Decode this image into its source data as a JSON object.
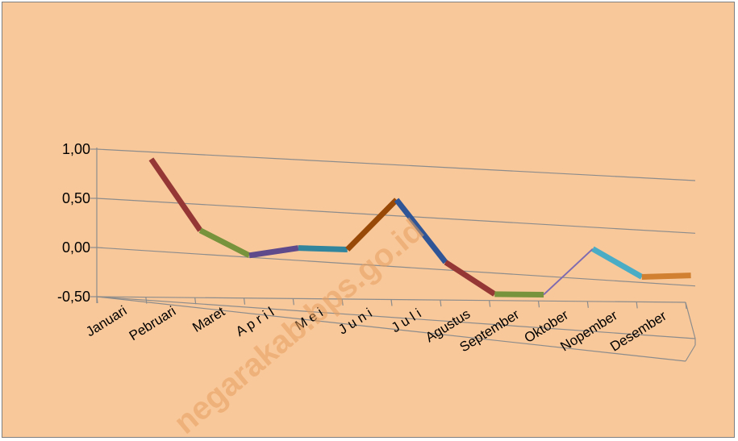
{
  "chart_data": {
    "type": "line",
    "title": "",
    "xlabel": "",
    "ylabel": "",
    "categories": [
      "Januari",
      "Pebruari",
      "Maret",
      "A p r i l",
      "M e i",
      "J u n i",
      "J u l i",
      "Agustus",
      "September",
      "Oktober",
      "Nopember",
      "Desember"
    ],
    "values": [
      0.97,
      0.25,
      0.0,
      0.08,
      0.07,
      0.58,
      -0.05,
      -0.37,
      -0.37,
      0.1,
      -0.18,
      -0.16
    ],
    "yticks": [
      "1,00",
      "0,50",
      "0,00",
      "-0,50"
    ],
    "ylim": [
      -0.5,
      1.0
    ],
    "grid": true,
    "legend": "none",
    "segment_colors": [
      "#953735",
      "#77933c",
      "#5f4b8b",
      "#31859c",
      "#984807",
      "#2f5597",
      "#953735",
      "#77933c",
      "#7f6bb0",
      "#4bacc6",
      "#d08030",
      "#d08030"
    ],
    "background": "#f9c89a",
    "watermark": "negarakab.bps.go.id"
  }
}
